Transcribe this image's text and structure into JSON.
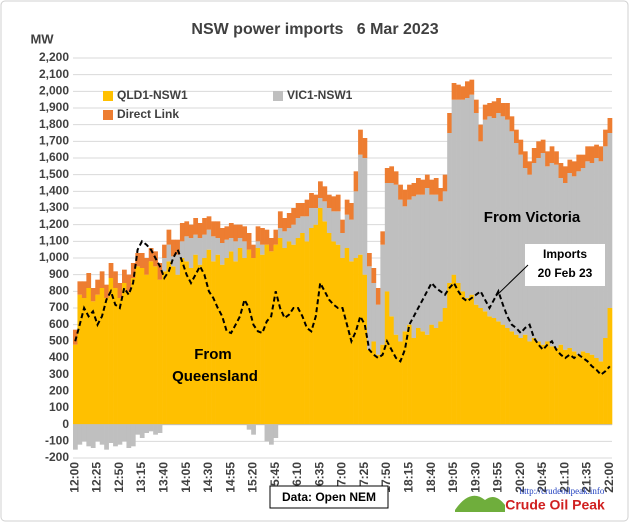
{
  "chart_data": {
    "type": "bar",
    "stacked": true,
    "title": "NSW power imports   6 Mar 2023",
    "y_label": "MW",
    "annotations": [
      "From",
      "Queensland",
      "From Victoria",
      "Imports",
      "20 Feb 23"
    ],
    "source": "Data: Open NEM",
    "logo_url": "http://crudeoilpeak.info",
    "logo_name": "Crude Oil Peak",
    "grid": true,
    "ylim": [
      -200,
      2200
    ],
    "yticks": [
      -200,
      -100,
      0,
      100,
      200,
      300,
      400,
      500,
      600,
      700,
      800,
      900,
      {
        "value": 1000,
        "label": "1,000"
      },
      {
        "value": 1100,
        "label": "1,100"
      },
      {
        "value": 1200,
        "label": "1,200"
      },
      {
        "value": 1300,
        "label": "1,300"
      },
      {
        "value": 1400,
        "label": "1,400"
      },
      {
        "value": 1500,
        "label": "1,500"
      },
      {
        "value": 1600,
        "label": "1,600"
      },
      {
        "value": 1700,
        "label": "1,700"
      },
      {
        "value": 1800,
        "label": "1,800"
      },
      {
        "value": 1900,
        "label": "1,900"
      },
      {
        "value": 2000,
        "label": "2,000"
      },
      {
        "value": 2100,
        "label": "2,100"
      },
      {
        "value": 2200,
        "label": "2,200"
      }
    ],
    "categories": [
      "12:00",
      null,
      null,
      null,
      null,
      "12:25",
      null,
      null,
      null,
      null,
      "12:50",
      null,
      null,
      null,
      null,
      "13:15",
      null,
      null,
      null,
      null,
      "13:40",
      null,
      null,
      null,
      null,
      "14:05",
      null,
      null,
      null,
      null,
      "14:30",
      null,
      null,
      null,
      null,
      "14:55",
      null,
      null,
      null,
      null,
      "15:20",
      null,
      null,
      null,
      null,
      "15:45",
      null,
      null,
      null,
      null,
      "16:10",
      null,
      null,
      null,
      null,
      "16:35",
      null,
      null,
      null,
      null,
      "17:00",
      null,
      null,
      null,
      null,
      "17:25",
      null,
      null,
      null,
      null,
      "17:50",
      null,
      null,
      null,
      null,
      "18:15",
      null,
      null,
      null,
      null,
      "18:40",
      null,
      null,
      null,
      null,
      "19:05",
      null,
      null,
      null,
      null,
      "19:30",
      null,
      null,
      null,
      null,
      "19:55",
      null,
      null,
      null,
      null,
      "20:20",
      null,
      null,
      null,
      null,
      "20:45",
      null,
      null,
      null,
      null,
      "21:10",
      null,
      null,
      null,
      null,
      "21:35",
      null,
      null,
      null,
      null,
      "22:00"
    ],
    "series": [
      {
        "name": "QLD1-NSW1",
        "color": "#ffc000",
        "values": [
          480,
          780,
          760,
          820,
          740,
          780,
          820,
          760,
          880,
          820,
          760,
          850,
          800,
          880,
          950,
          940,
          900,
          980,
          950,
          870,
          920,
          980,
          950,
          900,
          1000,
          980,
          940,
          1020,
          960,
          1000,
          1050,
          980,
          1020,
          960,
          1000,
          1040,
          980,
          1060,
          1000,
          1050,
          1000,
          1060,
          1020,
          1080,
          1040,
          1080,
          1120,
          1060,
          1100,
          1080,
          1120,
          1150,
          1100,
          1180,
          1200,
          1300,
          1220,
          1150,
          1100,
          1080,
          1000,
          1060,
          980,
          1000,
          1020,
          900,
          450,
          500,
          420,
          480,
          800,
          650,
          540,
          500,
          560,
          600,
          520,
          580,
          560,
          540,
          600,
          580,
          620,
          700,
          850,
          900,
          850,
          800,
          760,
          780,
          720,
          700,
          680,
          650,
          640,
          620,
          600,
          580,
          560,
          540,
          520,
          540,
          500,
          520,
          500,
          480,
          500,
          470,
          460,
          480,
          450,
          460,
          440,
          420,
          440,
          430,
          420,
          400,
          380,
          520,
          700
        ]
      },
      {
        "name": "VIC1-NSW1",
        "color": "#bfbfbf",
        "values": [
          -150,
          -120,
          -100,
          -130,
          -140,
          -100,
          -120,
          -150,
          -110,
          -130,
          -120,
          -100,
          -140,
          -130,
          -60,
          -80,
          -50,
          -40,
          -60,
          -50,
          80,
          100,
          60,
          120,
          100,
          150,
          180,
          120,
          160,
          140,
          120,
          150,
          100,
          130,
          110,
          80,
          120,
          60,
          100,
          -30,
          -60,
          40,
          60,
          -100,
          -120,
          -80,
          60,
          100,
          80,
          120,
          120,
          100,
          150,
          120,
          100,
          60,
          120,
          150,
          180,
          200,
          150,
          200,
          250,
          400,
          600,
          700,
          500,
          350,
          300,
          600,
          650,
          800,
          900,
          850,
          750,
          750,
          850,
          800,
          820,
          880,
          780,
          800,
          720,
          700,
          900,
          1050,
          1100,
          1150,
          1200,
          1200,
          1150,
          1000,
          1150,
          1200,
          1200,
          1250,
          1250,
          1250,
          1200,
          1150,
          1100,
          1000,
          1000,
          1050,
          1100,
          1150,
          1050,
          1100,
          1100,
          1000,
          1000,
          1050,
          1050,
          1100,
          1100,
          1150,
          1150,
          1200,
          1200,
          1150,
          1050
        ]
      },
      {
        "name": "Direct Link",
        "color": "#ed7d31",
        "values": [
          90,
          80,
          100,
          90,
          80,
          90,
          100,
          80,
          90,
          100,
          90,
          80,
          100,
          90,
          80,
          90,
          100,
          80,
          90,
          100,
          80,
          90,
          100,
          90,
          110,
          90,
          80,
          100,
          90,
          100,
          80,
          90,
          100,
          90,
          80,
          90,
          100,
          80,
          90,
          100,
          80,
          90,
          100,
          90,
          80,
          90,
          100,
          80,
          90,
          100,
          90,
          80,
          100,
          90,
          80,
          100,
          90,
          80,
          90,
          100,
          80,
          90,
          100,
          120,
          150,
          120,
          80,
          90,
          100,
          80,
          90,
          100,
          80,
          90,
          100,
          90,
          80,
          100,
          90,
          80,
          90,
          100,
          80,
          100,
          120,
          100,
          90,
          80,
          100,
          90,
          80,
          100,
          90,
          80,
          100,
          90,
          80,
          100,
          90,
          80,
          90,
          100,
          80,
          90,
          100,
          80,
          90,
          100,
          80,
          90,
          100,
          80,
          90,
          100,
          80,
          90,
          100,
          80,
          90,
          100,
          90
        ]
      },
      {
        "type": "line",
        "style": "dashed",
        "color": "#000000",
        "values": [
          500,
          600,
          700,
          650,
          680,
          600,
          650,
          750,
          800,
          720,
          700,
          820,
          780,
          850,
          1050,
          1100,
          1080,
          1050,
          1000,
          950,
          880,
          920,
          1000,
          1050,
          980,
          900,
          850,
          900,
          950,
          900,
          800,
          760,
          700,
          650,
          560,
          550,
          600,
          650,
          750,
          700,
          600,
          560,
          550,
          620,
          650,
          800,
          700,
          640,
          660,
          700,
          700,
          650,
          580,
          560,
          650,
          850,
          800,
          750,
          720,
          700,
          700,
          600,
          500,
          560,
          650,
          600,
          450,
          420,
          400,
          420,
          500,
          450,
          400,
          380,
          450,
          600,
          650,
          700,
          750,
          800,
          850,
          820,
          800,
          780,
          820,
          850,
          800,
          760,
          740,
          760,
          780,
          800,
          750,
          700,
          750,
          800,
          720,
          650,
          600,
          580,
          550,
          580,
          600,
          520,
          480,
          450,
          480,
          500,
          450,
          420,
          400,
          420,
          400,
          420,
          400,
          380,
          350,
          330,
          300,
          320,
          350
        ]
      }
    ]
  }
}
